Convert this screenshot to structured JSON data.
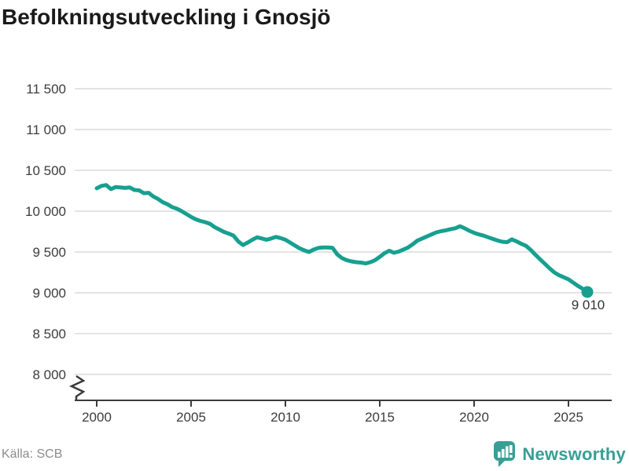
{
  "header": {
    "title": "Befolkningsutveckling i Gnosjö"
  },
  "footer": {
    "source": "Källa: SCB",
    "brand": "Newsworthy"
  },
  "colors": {
    "line": "#17a08f",
    "dot": "#17a08f",
    "grid": "#e3e3e3",
    "axis": "#3b3b3b",
    "title": "#1a1a1a",
    "tick_label": "#3c3c3c",
    "end_label": "#333333",
    "source_text": "#8c8c8c",
    "brand_teal": "#399e95"
  },
  "chart_data": {
    "type": "line",
    "title": "Befolkningsutveckling i Gnosjö",
    "series_name": "Befolkning i Gnosjö",
    "xlabel": "",
    "ylabel": "",
    "grid": "horizontal",
    "legend": "none",
    "axis_break_bottom_left": true,
    "ylim_display": [
      8000,
      11500
    ],
    "xlim_display": [
      1998.8,
      2027.3
    ],
    "y_ticks": [
      11500,
      11000,
      10500,
      10000,
      9500,
      9000,
      8500,
      8000
    ],
    "y_tick_labels": [
      "11 500",
      "11 000",
      "10 500",
      "10 000",
      "9 500",
      "9 000",
      "8 500",
      "8 000"
    ],
    "x_ticks": [
      2000,
      2005,
      2010,
      2015,
      2020,
      2025
    ],
    "x_tick_labels": [
      "2000",
      "2005",
      "2010",
      "2015",
      "2020",
      "2025"
    ],
    "end_label": "9 010",
    "end_point": {
      "x": 2026,
      "y": 9010
    },
    "points": [
      [
        2000.0,
        10280
      ],
      [
        2000.25,
        10310
      ],
      [
        2000.5,
        10320
      ],
      [
        2000.75,
        10270
      ],
      [
        2001.0,
        10295
      ],
      [
        2001.25,
        10290
      ],
      [
        2001.5,
        10285
      ],
      [
        2001.75,
        10290
      ],
      [
        2002.0,
        10260
      ],
      [
        2002.25,
        10255
      ],
      [
        2002.5,
        10220
      ],
      [
        2002.75,
        10225
      ],
      [
        2003.0,
        10180
      ],
      [
        2003.25,
        10150
      ],
      [
        2003.5,
        10110
      ],
      [
        2003.75,
        10085
      ],
      [
        2004.0,
        10050
      ],
      [
        2004.25,
        10030
      ],
      [
        2004.5,
        10000
      ],
      [
        2004.75,
        9965
      ],
      [
        2005.0,
        9930
      ],
      [
        2005.25,
        9900
      ],
      [
        2005.5,
        9880
      ],
      [
        2005.75,
        9865
      ],
      [
        2006.0,
        9845
      ],
      [
        2006.25,
        9805
      ],
      [
        2006.5,
        9775
      ],
      [
        2006.75,
        9745
      ],
      [
        2007.0,
        9725
      ],
      [
        2007.25,
        9700
      ],
      [
        2007.5,
        9630
      ],
      [
        2007.75,
        9585
      ],
      [
        2008.0,
        9615
      ],
      [
        2008.25,
        9650
      ],
      [
        2008.5,
        9680
      ],
      [
        2008.75,
        9665
      ],
      [
        2009.0,
        9650
      ],
      [
        2009.25,
        9665
      ],
      [
        2009.5,
        9685
      ],
      [
        2009.75,
        9670
      ],
      [
        2010.0,
        9650
      ],
      [
        2010.25,
        9615
      ],
      [
        2010.5,
        9580
      ],
      [
        2010.75,
        9545
      ],
      [
        2011.0,
        9520
      ],
      [
        2011.25,
        9500
      ],
      [
        2011.5,
        9530
      ],
      [
        2011.75,
        9550
      ],
      [
        2012.0,
        9555
      ],
      [
        2012.25,
        9555
      ],
      [
        2012.5,
        9550
      ],
      [
        2012.75,
        9470
      ],
      [
        2013.0,
        9425
      ],
      [
        2013.25,
        9400
      ],
      [
        2013.5,
        9385
      ],
      [
        2013.75,
        9375
      ],
      [
        2014.0,
        9370
      ],
      [
        2014.25,
        9360
      ],
      [
        2014.5,
        9375
      ],
      [
        2014.75,
        9400
      ],
      [
        2015.0,
        9440
      ],
      [
        2015.25,
        9485
      ],
      [
        2015.5,
        9515
      ],
      [
        2015.75,
        9490
      ],
      [
        2016.0,
        9505
      ],
      [
        2016.25,
        9530
      ],
      [
        2016.5,
        9555
      ],
      [
        2016.75,
        9595
      ],
      [
        2017.0,
        9640
      ],
      [
        2017.25,
        9665
      ],
      [
        2017.5,
        9690
      ],
      [
        2017.75,
        9715
      ],
      [
        2018.0,
        9740
      ],
      [
        2018.25,
        9755
      ],
      [
        2018.5,
        9765
      ],
      [
        2018.75,
        9780
      ],
      [
        2019.0,
        9790
      ],
      [
        2019.25,
        9815
      ],
      [
        2019.5,
        9790
      ],
      [
        2019.75,
        9760
      ],
      [
        2020.0,
        9735
      ],
      [
        2020.25,
        9715
      ],
      [
        2020.5,
        9700
      ],
      [
        2020.75,
        9680
      ],
      [
        2021.0,
        9660
      ],
      [
        2021.25,
        9640
      ],
      [
        2021.5,
        9625
      ],
      [
        2021.75,
        9620
      ],
      [
        2022.0,
        9655
      ],
      [
        2022.25,
        9630
      ],
      [
        2022.5,
        9600
      ],
      [
        2022.75,
        9575
      ],
      [
        2023.0,
        9525
      ],
      [
        2023.25,
        9465
      ],
      [
        2023.5,
        9410
      ],
      [
        2023.75,
        9355
      ],
      [
        2024.0,
        9300
      ],
      [
        2024.25,
        9250
      ],
      [
        2024.5,
        9215
      ],
      [
        2024.75,
        9190
      ],
      [
        2025.0,
        9165
      ],
      [
        2025.25,
        9125
      ],
      [
        2025.5,
        9085
      ],
      [
        2025.75,
        9050
      ],
      [
        2026.0,
        9010
      ]
    ]
  }
}
